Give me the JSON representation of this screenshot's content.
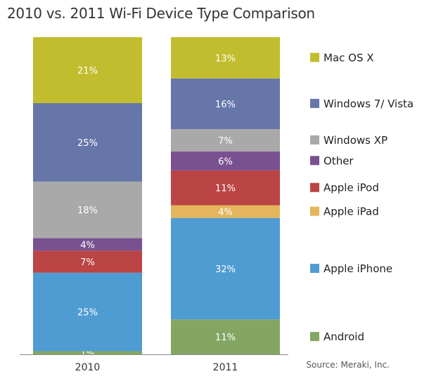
{
  "chart_data": {
    "type": "bar",
    "stacked": true,
    "title": "2010 vs. 2011 Wi-Fi Device Type Comparison",
    "categories": [
      "2010",
      "2011"
    ],
    "unit": "%",
    "ylim": [
      0,
      100
    ],
    "grid": false,
    "legend_position": "right",
    "series": [
      {
        "name": "Android",
        "color": "#83a762",
        "values": [
          1,
          11
        ],
        "labels": [
          "1%",
          "11%"
        ]
      },
      {
        "name": "Apple iPhone",
        "color": "#4f9cd3",
        "values": [
          25,
          32
        ],
        "labels": [
          "25%",
          "32%"
        ]
      },
      {
        "name": "Apple iPad",
        "color": "#e4b55c",
        "values": [
          0,
          4
        ],
        "labels": [
          "",
          "4%"
        ]
      },
      {
        "name": "Apple iPod",
        "color": "#bb4544",
        "values": [
          7,
          11
        ],
        "labels": [
          "7%",
          "11%"
        ]
      },
      {
        "name": "Other",
        "color": "#7a5190",
        "values": [
          4,
          6
        ],
        "labels": [
          "4%",
          "6%"
        ]
      },
      {
        "name": "Windows XP",
        "color": "#a9a9a9",
        "values": [
          18,
          7
        ],
        "labels": [
          "18%",
          "7%"
        ]
      },
      {
        "name": "Windows 7/ Vista",
        "color": "#6676a8",
        "values": [
          25,
          16
        ],
        "labels": [
          "25%",
          "16%"
        ]
      },
      {
        "name": "Mac OS X",
        "color": "#c2bd2f",
        "values": [
          21,
          13
        ],
        "labels": [
          "21%",
          "13%"
        ]
      }
    ],
    "source": "Source: Meraki, Inc."
  }
}
